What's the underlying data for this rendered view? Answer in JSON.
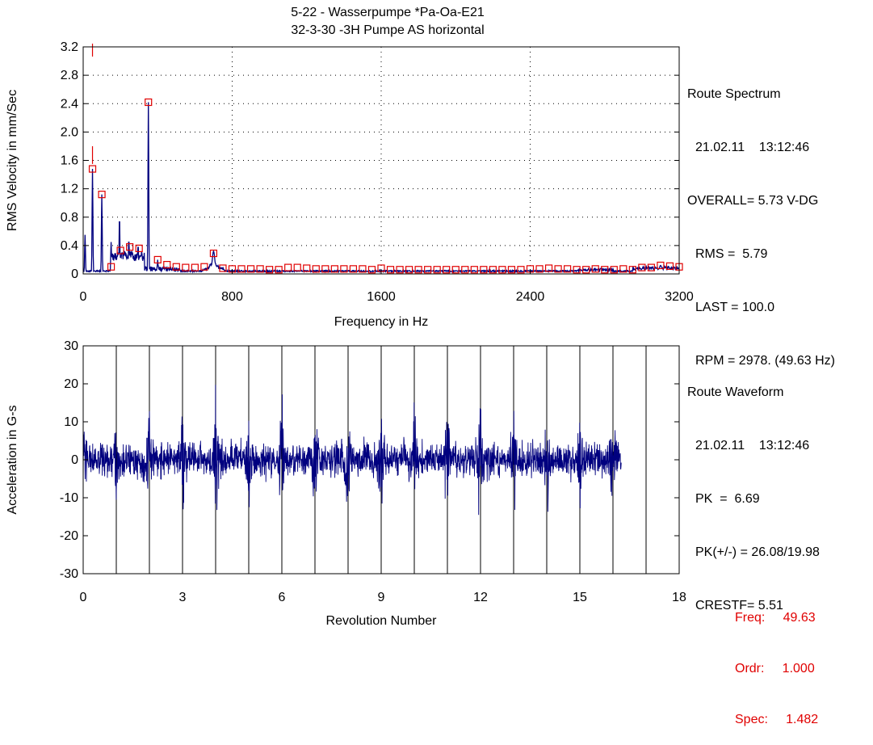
{
  "header": {
    "line1": "5-22 - Wasserpumpe        *Pa-Oa-E21",
    "line2": "32-3-30   -3H    Pumpe AS horizontal"
  },
  "spectrum_info": {
    "title": "Route Spectrum",
    "datetime": "21.02.11    13:12:46",
    "overall": "OVERALL= 5.73 V-DG",
    "rms": "RMS =  5.79",
    "last": "LAST = 100.0",
    "rpm": "RPM = 2978. (49.63 Hz)"
  },
  "waveform_info": {
    "title": "Route Waveform",
    "datetime": "21.02.11    13:12:46",
    "pk": "PK  =  6.69",
    "pkpm": "PK(+/-) = 26.08/19.98",
    "crest": "CRESTF= 5.51"
  },
  "cursor": {
    "freq": "Freq:     49.63",
    "ordr": "Ordr:     1.000",
    "spec": "Spec:     1.482"
  },
  "colors": {
    "trace": "#00007f",
    "marker": "#e00000",
    "axis": "#000000"
  },
  "chart_data": [
    {
      "type": "line",
      "xlabel": "Frequency in Hz",
      "ylabel": "RMS Velocity in mm/Sec",
      "xlim": [
        0,
        3200
      ],
      "ylim": [
        0,
        3.2
      ],
      "xticks": [
        0,
        800,
        1600,
        2400,
        3200
      ],
      "yticks": [
        "0",
        "0.4",
        "0.8",
        "1.2",
        "1.6",
        "2.0",
        "2.4",
        "2.8",
        "3.2"
      ],
      "grid": "dotted",
      "peaks": [
        {
          "x": 10,
          "y": 0.55
        },
        {
          "x": 50,
          "y": 1.48
        },
        {
          "x": 100,
          "y": 1.12
        },
        {
          "x": 150,
          "y": 0.45
        },
        {
          "x": 195,
          "y": 0.82
        },
        {
          "x": 245,
          "y": 0.5
        },
        {
          "x": 295,
          "y": 0.42
        },
        {
          "x": 350,
          "y": 2.42
        },
        {
          "x": 400,
          "y": 0.2
        },
        {
          "x": 700,
          "y": 0.32
        },
        {
          "x": 2780,
          "y": 0.08
        },
        {
          "x": 3100,
          "y": 0.12
        }
      ],
      "markers": [
        {
          "x": 50,
          "y": 1.48
        },
        {
          "x": 100,
          "y": 1.12
        },
        {
          "x": 150,
          "y": 0.1
        },
        {
          "x": 200,
          "y": 0.33
        },
        {
          "x": 250,
          "y": 0.38
        },
        {
          "x": 300,
          "y": 0.36
        },
        {
          "x": 350,
          "y": 2.42
        },
        {
          "x": 400,
          "y": 0.2
        },
        {
          "x": 450,
          "y": 0.13
        },
        {
          "x": 500,
          "y": 0.1
        },
        {
          "x": 550,
          "y": 0.09
        },
        {
          "x": 600,
          "y": 0.09
        },
        {
          "x": 650,
          "y": 0.1
        },
        {
          "x": 700,
          "y": 0.29
        },
        {
          "x": 750,
          "y": 0.08
        },
        {
          "x": 800,
          "y": 0.07
        },
        {
          "x": 850,
          "y": 0.07
        },
        {
          "x": 900,
          "y": 0.07
        },
        {
          "x": 950,
          "y": 0.07
        },
        {
          "x": 1000,
          "y": 0.06
        },
        {
          "x": 1050,
          "y": 0.06
        },
        {
          "x": 1100,
          "y": 0.09
        },
        {
          "x": 1150,
          "y": 0.09
        },
        {
          "x": 1200,
          "y": 0.08
        },
        {
          "x": 1250,
          "y": 0.07
        },
        {
          "x": 1300,
          "y": 0.07
        },
        {
          "x": 1350,
          "y": 0.07
        },
        {
          "x": 1400,
          "y": 0.07
        },
        {
          "x": 1450,
          "y": 0.07
        },
        {
          "x": 1500,
          "y": 0.07
        },
        {
          "x": 1550,
          "y": 0.06
        },
        {
          "x": 1600,
          "y": 0.08
        },
        {
          "x": 1650,
          "y": 0.06
        },
        {
          "x": 1700,
          "y": 0.06
        },
        {
          "x": 1750,
          "y": 0.06
        },
        {
          "x": 1800,
          "y": 0.06
        },
        {
          "x": 1850,
          "y": 0.06
        },
        {
          "x": 1900,
          "y": 0.06
        },
        {
          "x": 1950,
          "y": 0.06
        },
        {
          "x": 2000,
          "y": 0.06
        },
        {
          "x": 2050,
          "y": 0.06
        },
        {
          "x": 2100,
          "y": 0.06
        },
        {
          "x": 2150,
          "y": 0.06
        },
        {
          "x": 2200,
          "y": 0.06
        },
        {
          "x": 2250,
          "y": 0.06
        },
        {
          "x": 2300,
          "y": 0.06
        },
        {
          "x": 2350,
          "y": 0.06
        },
        {
          "x": 2400,
          "y": 0.07
        },
        {
          "x": 2450,
          "y": 0.07
        },
        {
          "x": 2500,
          "y": 0.08
        },
        {
          "x": 2550,
          "y": 0.07
        },
        {
          "x": 2600,
          "y": 0.07
        },
        {
          "x": 2650,
          "y": 0.06
        },
        {
          "x": 2700,
          "y": 0.06
        },
        {
          "x": 2750,
          "y": 0.07
        },
        {
          "x": 2800,
          "y": 0.06
        },
        {
          "x": 2850,
          "y": 0.06
        },
        {
          "x": 2900,
          "y": 0.07
        },
        {
          "x": 2950,
          "y": 0.06
        },
        {
          "x": 3000,
          "y": 0.09
        },
        {
          "x": 3050,
          "y": 0.09
        },
        {
          "x": 3100,
          "y": 0.12
        },
        {
          "x": 3150,
          "y": 0.11
        },
        {
          "x": 3200,
          "y": 0.1
        }
      ],
      "cursor_x": [
        50
      ]
    },
    {
      "type": "line",
      "xlabel": "Revolution Number",
      "ylabel": "Acceleration in G-s",
      "xlim": [
        0,
        18
      ],
      "ylim": [
        -30,
        30
      ],
      "xticks": [
        0,
        3,
        6,
        9,
        12,
        15,
        18
      ],
      "yticks": [
        "-30",
        "-20",
        "-10",
        "0",
        "10",
        "20",
        "30"
      ],
      "revolution_lines": [
        1,
        2,
        3,
        4,
        5,
        6,
        7,
        8,
        9,
        10,
        11,
        12,
        13,
        14,
        15,
        16,
        17
      ],
      "waveform_extent": [
        0,
        16.25
      ],
      "peak_positive": 26.08,
      "peak_negative": -19.98
    }
  ]
}
